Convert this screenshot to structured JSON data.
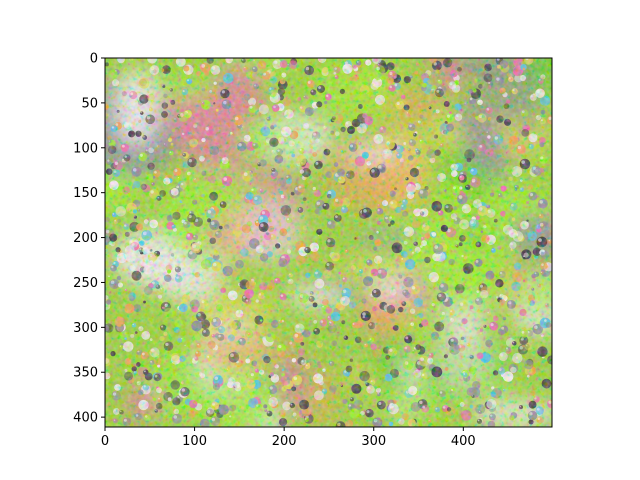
{
  "figure": {
    "image_description": "",
    "colors": {
      "lime": "#9ef520",
      "green": "#5fd010",
      "yellow": "#e8e14a",
      "gray": "#8a8a93",
      "pink": "#f06aa8",
      "white": "#f6f2ef",
      "orange": "#f2a548",
      "cyan": "#4fc7e8",
      "dark": "#3b3340"
    }
  },
  "axes": {
    "x_ticks": [
      "0",
      "100",
      "200",
      "300",
      "400"
    ],
    "y_ticks": [
      "0",
      "50",
      "100",
      "150",
      "200",
      "250",
      "300",
      "350",
      "400"
    ],
    "x_values": [
      0,
      100,
      200,
      300,
      400
    ],
    "y_values": [
      0,
      50,
      100,
      150,
      200,
      250,
      300,
      350,
      400
    ],
    "xlim": [
      0,
      499
    ],
    "ylim": [
      411,
      0
    ]
  }
}
